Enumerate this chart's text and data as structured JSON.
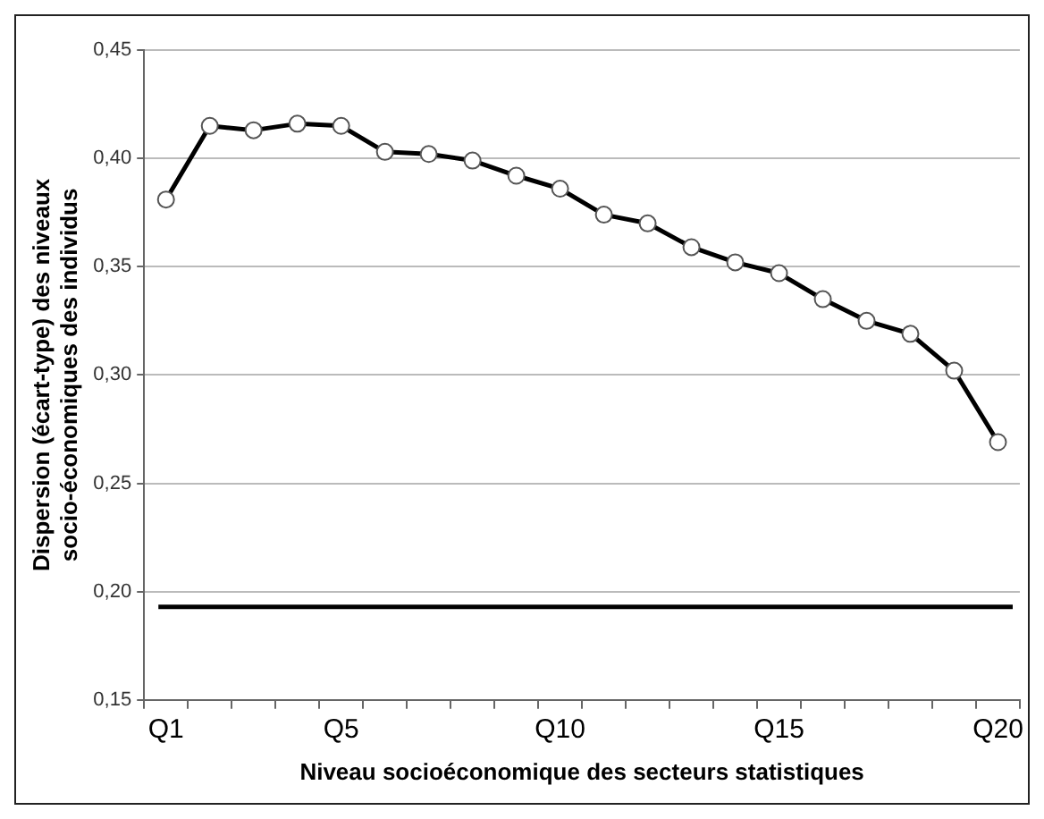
{
  "chart_data": {
    "type": "line",
    "xlabel": "Niveau socioéconomique des secteurs statistiques",
    "ylabel": "Dispersion (écart-type) des niveaux socio-économiques des individus",
    "categories": [
      "Q1",
      null,
      null,
      null,
      "Q5",
      null,
      null,
      null,
      null,
      "Q10",
      null,
      null,
      null,
      null,
      "Q15",
      null,
      null,
      null,
      null,
      "Q20"
    ],
    "series": [
      {
        "color": "#000000",
        "values": [
          0.381,
          0.415,
          0.413,
          0.416,
          0.415,
          0.403,
          0.402,
          0.399,
          0.392,
          0.386,
          0.374,
          0.37,
          0.359,
          0.352,
          0.347,
          0.335,
          0.325,
          0.319,
          0.302,
          0.269
        ]
      }
    ],
    "ylim": [
      0.15,
      0.45
    ],
    "yticks": [
      {
        "value": 0.15,
        "label": "0,15"
      },
      {
        "value": 0.2,
        "label": "0,20"
      },
      {
        "value": 0.25,
        "label": "0,25"
      },
      {
        "value": 0.3,
        "label": "0,30"
      },
      {
        "value": 0.35,
        "label": "0,35"
      },
      {
        "value": 0.4,
        "label": "0,40"
      },
      {
        "value": 0.45,
        "label": "0,45"
      }
    ],
    "ref_lines": [
      {
        "axis": "y",
        "value": 0.193,
        "color": "#000000",
        "line_style": "solid"
      }
    ],
    "grid": "y",
    "marker": "circle",
    "line_style": "solid",
    "legend": false
  }
}
